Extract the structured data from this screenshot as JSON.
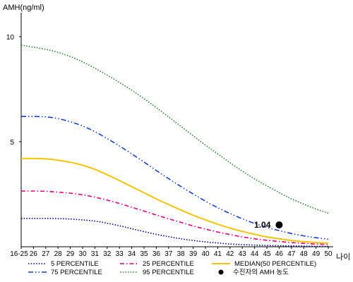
{
  "chart_data": {
    "type": "line",
    "title": "",
    "ylabel": "AMH(ng/ml)",
    "xlabel": "나이",
    "ylim": [
      0,
      11
    ],
    "y_ticks": [
      5,
      10
    ],
    "categories": [
      "16-25",
      "26",
      "27",
      "28",
      "29",
      "30",
      "31",
      "32",
      "33",
      "34",
      "35",
      "36",
      "37",
      "38",
      "39",
      "40",
      "41",
      "42",
      "43",
      "44",
      "45",
      "46",
      "47",
      "48",
      "49",
      "50"
    ],
    "grid": false,
    "legend_position": "bottom",
    "series": [
      {
        "name": "5 PERCENTILE",
        "color": "#000080",
        "dash": "dot",
        "values": [
          1.35,
          1.35,
          1.35,
          1.34,
          1.32,
          1.28,
          1.22,
          1.12,
          1.0,
          0.86,
          0.72,
          0.59,
          0.48,
          0.38,
          0.3,
          0.23,
          0.18,
          0.13,
          0.1,
          0.08,
          0.06,
          0.05,
          0.04,
          0.03,
          0.02,
          0.02
        ]
      },
      {
        "name": "25 PERCENTILE",
        "color": "#e6007e",
        "dash": "dashdot",
        "values": [
          2.65,
          2.65,
          2.64,
          2.6,
          2.55,
          2.47,
          2.36,
          2.22,
          2.06,
          1.88,
          1.7,
          1.51,
          1.33,
          1.16,
          0.99,
          0.84,
          0.7,
          0.58,
          0.47,
          0.38,
          0.31,
          0.25,
          0.2,
          0.16,
          0.13,
          0.11
        ]
      },
      {
        "name": "MEDIAN(50 PERCENTILE)",
        "color": "#f5c400",
        "dash": "solid",
        "values": [
          4.2,
          4.2,
          4.18,
          4.12,
          4.02,
          3.88,
          3.68,
          3.43,
          3.15,
          2.86,
          2.57,
          2.28,
          2.01,
          1.75,
          1.5,
          1.28,
          1.07,
          0.89,
          0.73,
          0.59,
          0.47,
          0.38,
          0.3,
          0.24,
          0.2,
          0.17
        ]
      },
      {
        "name": "75 PERCENTILE",
        "color": "#1a3fc4",
        "dash": "dashdotdot",
        "values": [
          6.2,
          6.2,
          6.18,
          6.1,
          5.95,
          5.75,
          5.48,
          5.15,
          4.8,
          4.42,
          4.03,
          3.63,
          3.24,
          2.87,
          2.51,
          2.17,
          1.86,
          1.58,
          1.33,
          1.11,
          0.92,
          0.77,
          0.63,
          0.52,
          0.43,
          0.36
        ]
      },
      {
        "name": "95 PERCENTILE",
        "color": "#2e7d32",
        "dash": "dot",
        "values": [
          9.6,
          9.5,
          9.4,
          9.25,
          9.05,
          8.8,
          8.5,
          8.17,
          7.82,
          7.45,
          7.05,
          6.62,
          6.18,
          5.73,
          5.28,
          4.84,
          4.42,
          4.0,
          3.6,
          3.23,
          2.9,
          2.58,
          2.28,
          2.03,
          1.8,
          1.6
        ]
      }
    ],
    "markers": [
      {
        "name": "수진자의 AMH 농도",
        "x": "46",
        "y": 1.04,
        "label": "1.04"
      }
    ]
  }
}
